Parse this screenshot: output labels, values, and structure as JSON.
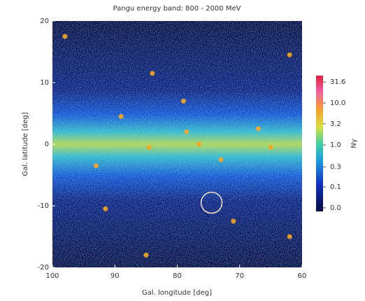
{
  "chart_data": {
    "type": "scatter",
    "title": "Pangu energy band: 800 - 2000 MeV",
    "xlabel": "Gal. longitude [deg]",
    "ylabel": "Gal. latitude [deg]",
    "xlim": [
      100,
      60
    ],
    "xticks": [
      100,
      90,
      80,
      70,
      60
    ],
    "ylim": [
      -20,
      20
    ],
    "yticks": [
      -20,
      -10,
      0,
      10,
      20
    ],
    "x": [
      89,
      78.5,
      76.5,
      67,
      84.5,
      98,
      62,
      84,
      79,
      93,
      91.5,
      71,
      85,
      62,
      65,
      73
    ],
    "y": [
      4.5,
      2,
      0,
      2.5,
      -0.5,
      17.5,
      14.5,
      11.5,
      7,
      -3.5,
      -10.5,
      -12.5,
      -18,
      -15,
      -0.5,
      -2.5
    ],
    "color": "#f5a623",
    "highlight": {
      "x": 74.5,
      "y": -9.5,
      "radius": 1.7,
      "color": "#f3e2c4"
    },
    "colorbar": {
      "label": "Nγ",
      "log": true,
      "clim": [
        0.026,
        45
      ],
      "ticks": [
        31.6,
        {
          "value": 10,
          "label": "10.0"
        },
        3.2,
        {
          "value": 1,
          "label": "1.0"
        },
        0.3,
        0.1,
        {
          "value": 0.0316,
          "label": "0.0"
        }
      ]
    }
  }
}
